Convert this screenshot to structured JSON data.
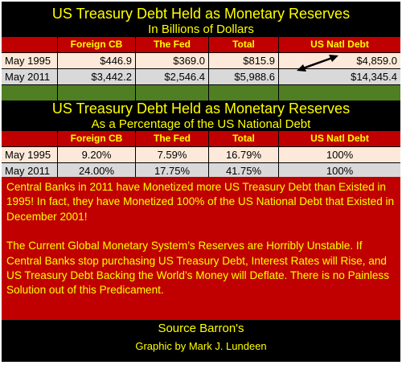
{
  "table1": {
    "title": "US Treasury Debt Held as Monetary Reserves",
    "subtitle": "In Billions of Dollars",
    "headers": [
      "",
      "Foreign CB",
      "The Fed",
      "Total",
      "US Natl Debt"
    ],
    "rows": [
      [
        "May 1995",
        "$446.9",
        "$369.0",
        "$815.9",
        "$4,859.0"
      ],
      [
        "May 2011",
        "$3,442.2",
        "$2,546.4",
        "$5,988.6",
        "$14,345.4"
      ]
    ]
  },
  "table2": {
    "title": "US Treasury Debt Held as Monetary Reserves",
    "subtitle": "As a Percentage of the US National Debt",
    "headers": [
      "",
      "Foreign CB",
      "The Fed",
      "Total",
      "US Natl Debt"
    ],
    "rows": [
      [
        "May 1995",
        "9.20%",
        "7.59%",
        "16.79%",
        "100%"
      ],
      [
        "May 2011",
        "24.00%",
        "17.75%",
        "41.75%",
        "100%"
      ]
    ]
  },
  "commentary": {
    "paragraph1": "Central Banks in 2011 have Monetized more US Treasury Debt than Existed in 1995!  In fact, they have Monetized 100% of the US National Debt that Existed in December 2001!",
    "paragraph2": "The Current Global Monetary System’s Reserves are Horribly Unstable.  If Central Banks stop purchasing US Treasury Debt, Interest Rates will Rise, and US Treasury Debt Backing the World’s Money will Deflate.  There is no Painless Solution out of this Predicament."
  },
  "footer": {
    "source": "Source Barron's",
    "credit": "Graphic by Mark J. Lundeen"
  },
  "colors": {
    "background": "#000000",
    "title_text": "#ffff00",
    "header_red": "#c00000",
    "row_pink": "#fde9d9",
    "row_gray": "#d9d9d9",
    "green_band": "#4f7f22"
  }
}
